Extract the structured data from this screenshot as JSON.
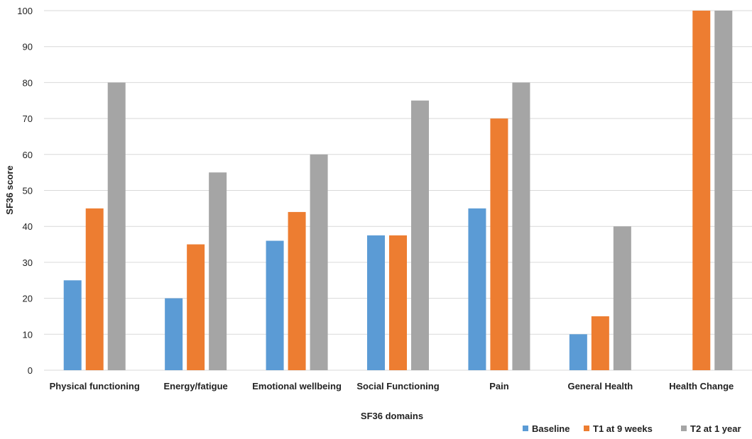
{
  "chart_data": {
    "type": "bar",
    "title": "",
    "xlabel": "SF36 domains",
    "ylabel": "SF36 score",
    "ylim": [
      0,
      100
    ],
    "yticks": [
      0,
      10,
      20,
      30,
      40,
      50,
      60,
      70,
      80,
      90,
      100
    ],
    "grid": true,
    "legend_position": "bottom-right",
    "categories": [
      "Physical functioning",
      "Energy/fatigue",
      "Emotional wellbeing",
      "Social Functioning",
      "Pain",
      "General Health",
      "Health Change"
    ],
    "series": [
      {
        "name": "Baseline",
        "color": "#5b9bd5",
        "values": [
          25,
          20,
          36,
          37.5,
          45,
          10,
          0
        ]
      },
      {
        "name": "T1 at 9 weeks",
        "color": "#ed7d31",
        "values": [
          45,
          35,
          44,
          37.5,
          70,
          15,
          100
        ]
      },
      {
        "name": "T2 at 1 year",
        "color": "#a5a5a5",
        "values": [
          80,
          55,
          60,
          75,
          80,
          40,
          100
        ]
      }
    ]
  }
}
